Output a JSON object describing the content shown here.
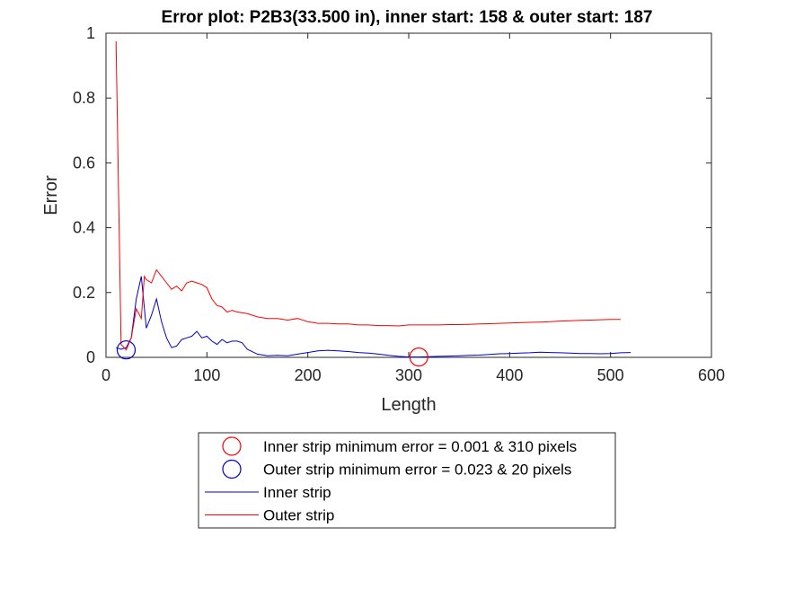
{
  "chart_data": {
    "type": "line",
    "title": "Error plot: P2B3(33.500 in), inner start: 158 & outer start: 187",
    "xlabel": "Length",
    "ylabel": "Error",
    "xlim": [
      0,
      600
    ],
    "ylim": [
      0,
      1
    ],
    "xticks": [
      0,
      100,
      200,
      300,
      400,
      500,
      600
    ],
    "yticks": [
      0,
      0.2,
      0.4,
      0.6,
      0.8,
      1
    ],
    "xtick_labels": [
      "0",
      "100",
      "200",
      "300",
      "400",
      "500",
      "600"
    ],
    "ytick_labels": [
      "0",
      "0.2",
      "0.4",
      "0.6",
      "0.8",
      "1"
    ],
    "grid": false,
    "legend_position": "below",
    "series": [
      {
        "name": "Inner strip",
        "color": "#0000cc",
        "x": [
          10,
          15,
          20,
          25,
          30,
          35,
          40,
          45,
          50,
          55,
          60,
          65,
          70,
          75,
          80,
          85,
          90,
          95,
          100,
          105,
          110,
          115,
          120,
          125,
          130,
          135,
          140,
          150,
          160,
          170,
          180,
          190,
          200,
          210,
          220,
          230,
          240,
          250,
          260,
          270,
          280,
          290,
          300,
          310,
          320,
          330,
          340,
          350,
          360,
          370,
          380,
          390,
          400,
          410,
          420,
          430,
          440,
          450,
          460,
          470,
          480,
          490,
          500,
          510,
          520
        ],
        "y": [
          0.03,
          0.025,
          0.03,
          0.06,
          0.18,
          0.25,
          0.09,
          0.13,
          0.18,
          0.11,
          0.06,
          0.03,
          0.035,
          0.055,
          0.06,
          0.065,
          0.08,
          0.06,
          0.065,
          0.05,
          0.04,
          0.055,
          0.045,
          0.05,
          0.05,
          0.045,
          0.025,
          0.01,
          0.005,
          0.006,
          0.005,
          0.01,
          0.015,
          0.02,
          0.022,
          0.02,
          0.018,
          0.015,
          0.013,
          0.01,
          0.006,
          0.003,
          0.001,
          0.001,
          0.002,
          0.003,
          0.004,
          0.005,
          0.006,
          0.007,
          0.009,
          0.011,
          0.012,
          0.013,
          0.014,
          0.016,
          0.015,
          0.014,
          0.013,
          0.012,
          0.012,
          0.011,
          0.012,
          0.014,
          0.015
        ]
      },
      {
        "name": "Outer strip",
        "color": "#ff0000",
        "x": [
          10,
          15,
          20,
          25,
          30,
          35,
          38,
          40,
          45,
          50,
          55,
          60,
          65,
          70,
          75,
          80,
          85,
          90,
          95,
          100,
          105,
          110,
          115,
          120,
          125,
          130,
          140,
          150,
          160,
          170,
          180,
          190,
          200,
          210,
          220,
          230,
          240,
          250,
          260,
          270,
          280,
          290,
          300,
          310,
          320,
          330,
          340,
          350,
          360,
          370,
          380,
          390,
          400,
          410,
          420,
          430,
          440,
          450,
          460,
          470,
          480,
          490,
          500,
          510
        ],
        "y": [
          0.975,
          0.04,
          0.023,
          0.06,
          0.15,
          0.12,
          0.25,
          0.24,
          0.23,
          0.27,
          0.25,
          0.23,
          0.21,
          0.22,
          0.205,
          0.23,
          0.235,
          0.23,
          0.225,
          0.215,
          0.18,
          0.16,
          0.155,
          0.14,
          0.145,
          0.14,
          0.135,
          0.125,
          0.12,
          0.12,
          0.115,
          0.12,
          0.11,
          0.105,
          0.105,
          0.103,
          0.103,
          0.1,
          0.1,
          0.098,
          0.098,
          0.097,
          0.1,
          0.1,
          0.1,
          0.1,
          0.101,
          0.101,
          0.102,
          0.103,
          0.104,
          0.105,
          0.106,
          0.107,
          0.108,
          0.109,
          0.11,
          0.112,
          0.113,
          0.114,
          0.115,
          0.116,
          0.117,
          0.117
        ]
      }
    ],
    "markers": [
      {
        "series": "Inner strip",
        "x": 310,
        "y": 0.001,
        "color": "#ff0000"
      },
      {
        "series": "Outer strip",
        "x": 20,
        "y": 0.023,
        "color": "#0000cc"
      }
    ],
    "legend": [
      {
        "kind": "marker",
        "color": "#ff0000",
        "label": "Inner strip minimum error = 0.001 & 310 pixels"
      },
      {
        "kind": "marker",
        "color": "#0000cc",
        "label": "Outer strip minimum error  = 0.023 & 20 pixels"
      },
      {
        "kind": "line",
        "color": "#0000cc",
        "label": "Inner strip"
      },
      {
        "kind": "line",
        "color": "#ff0000",
        "label": "Outer strip"
      }
    ]
  }
}
